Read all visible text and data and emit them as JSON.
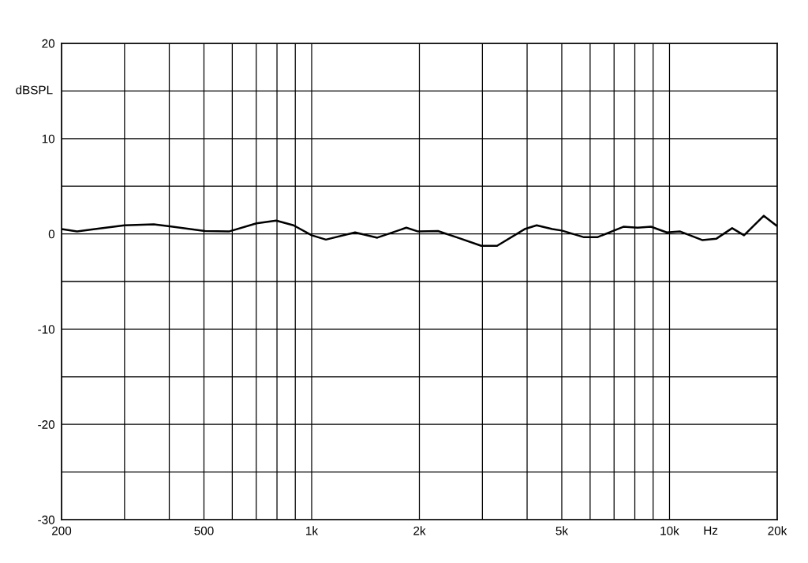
{
  "chart_data": {
    "type": "line",
    "xlabel": "Hz",
    "ylabel": "dBSPL",
    "log": "x",
    "x": [
      200,
      221,
      248,
      300,
      362,
      401,
      504,
      587,
      701,
      796,
      890,
      1000,
      1096,
      1322,
      1525,
      1839,
      1985,
      2254,
      2559,
      2979,
      3297,
      3937,
      4253,
      4706,
      4999,
      5767,
      6284,
      7434,
      8141,
      8875,
      9823,
      10712,
      12336,
      13525,
      14964,
      16154,
      18347,
      20000
    ],
    "series": [
      {
        "color": "#000000",
        "values": [
          0.5,
          0.25,
          0.5,
          0.9,
          1.0,
          0.8,
          0.3,
          0.25,
          1.1,
          1.4,
          0.9,
          -0.15,
          -0.6,
          0.15,
          -0.4,
          0.65,
          0.25,
          0.3,
          -0.4,
          -1.25,
          -1.25,
          0.5,
          0.9,
          0.5,
          0.35,
          -0.35,
          -0.35,
          0.75,
          0.65,
          0.75,
          0.15,
          0.25,
          -0.65,
          -0.5,
          0.6,
          -0.15,
          1.9,
          0.8
        ]
      }
    ],
    "xlim": [
      200,
      20000
    ],
    "xticks": [
      200,
      {
        "value": 300,
        "label": null
      },
      {
        "value": 400,
        "label": null
      },
      500,
      {
        "value": 600,
        "label": null
      },
      {
        "value": 700,
        "label": null
      },
      {
        "value": 800,
        "label": null
      },
      {
        "value": 900,
        "label": null
      },
      {
        "value": 1000,
        "label": "1k"
      },
      {
        "value": 2000,
        "label": "2k"
      },
      {
        "value": 3000,
        "label": null
      },
      {
        "value": 4000,
        "label": null
      },
      {
        "value": 5000,
        "label": "5k"
      },
      {
        "value": 6000,
        "label": null
      },
      {
        "value": 7000,
        "label": null
      },
      {
        "value": 8000,
        "label": null
      },
      {
        "value": 9000,
        "label": null
      },
      {
        "value": 10000,
        "label": "10k"
      },
      {
        "value": 20000,
        "label": "20k"
      }
    ],
    "ylim": [
      -30,
      20
    ],
    "yticks": [
      -30,
      {
        "value": -25,
        "label": null
      },
      -20,
      {
        "value": -15,
        "label": null
      },
      -10,
      {
        "value": -5,
        "label": null
      },
      0,
      {
        "value": 5,
        "label": null
      },
      10,
      {
        "value": 15,
        "label": null
      },
      20
    ],
    "grid": true,
    "line_style": "solid",
    "marker": "none"
  }
}
